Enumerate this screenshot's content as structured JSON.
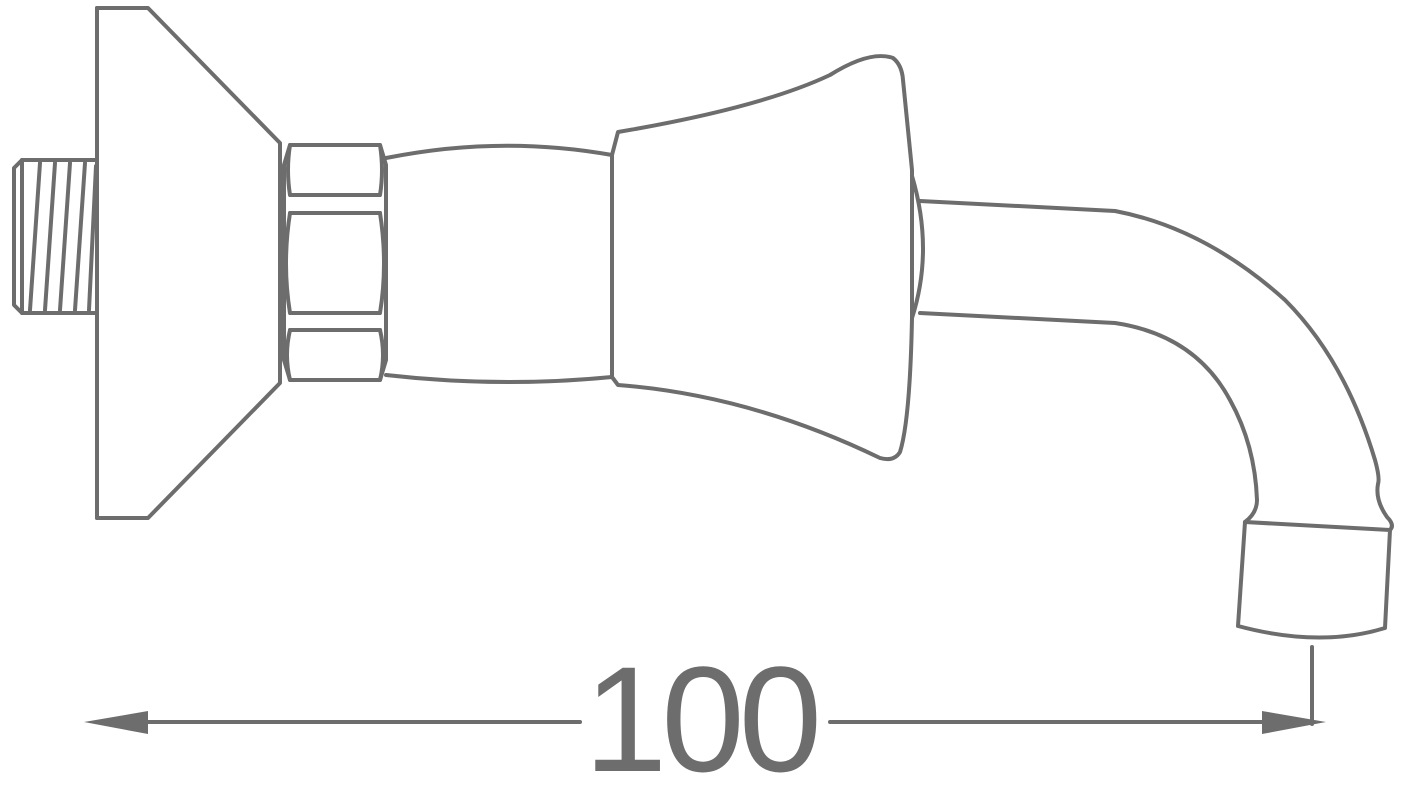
{
  "drawing": {
    "line_color": "#6d6d6d",
    "background": "#ffffff"
  },
  "dimension": {
    "value": "100"
  }
}
